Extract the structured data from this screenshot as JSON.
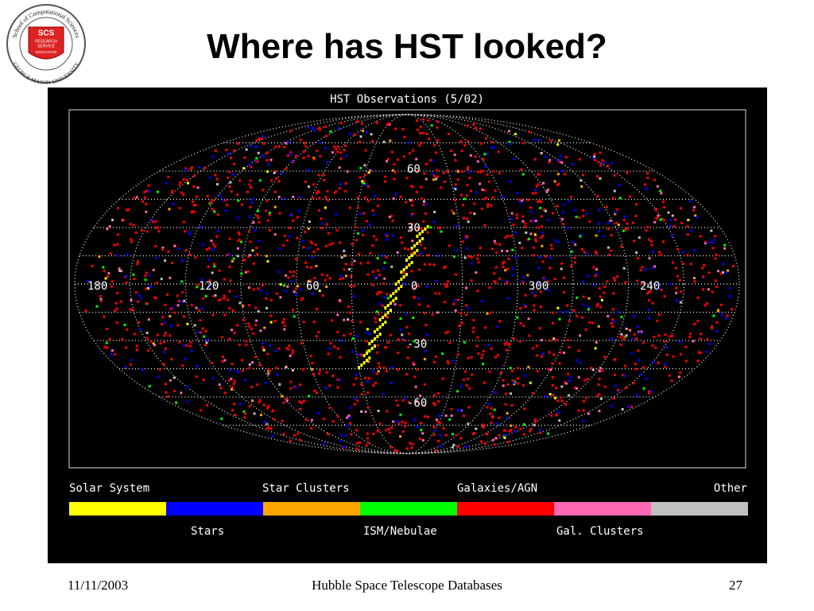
{
  "header": {
    "title": "Where has HST looked?"
  },
  "logo": {
    "ring_top": "School of Computational Sciences",
    "ring_bottom": "GEORGE MASON UNIVERSITY",
    "initials": "SCS",
    "lines": [
      "RESEARCH",
      "SERVICE",
      "EDUCATION"
    ]
  },
  "figure": {
    "title": "HST Observations (5/02)",
    "longitude_labels": [
      "180",
      "120",
      "60",
      "0",
      "300",
      "240"
    ],
    "latitude_labels": [
      "60",
      "30",
      "-30",
      "-60"
    ],
    "legend": [
      {
        "label": "Solar System",
        "color": "#ffff00"
      },
      {
        "label": "Stars",
        "color": "#0000ff"
      },
      {
        "label": "Star Clusters",
        "color": "#ffa500"
      },
      {
        "label": "ISM/Nebulae",
        "color": "#00ff00"
      },
      {
        "label": "Galaxies/AGN",
        "color": "#ff0000"
      },
      {
        "label": "Gal. Clusters",
        "color": "#ff69b4"
      },
      {
        "label": "Other",
        "color": "#c0c0c0"
      }
    ]
  },
  "footer": {
    "date": "11/11/2003",
    "center": "Hubble Space Telescope Databases",
    "page": "27"
  }
}
